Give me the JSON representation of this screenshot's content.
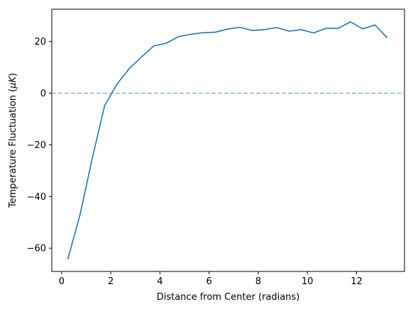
{
  "chart_data": {
    "type": "line",
    "title": "",
    "xlabel": "Distance from Center (radians)",
    "ylabel_prefix": "Temperature Fluctuation (",
    "ylabel_unit": "μK",
    "ylabel_suffix": ")",
    "xlim": [
      -0.4,
      13.95
    ],
    "ylim": [
      -69,
      32.5
    ],
    "xticks": [
      0,
      2,
      4,
      6,
      8,
      10,
      12
    ],
    "yticks": [
      -60,
      -40,
      -20,
      0,
      20
    ],
    "grid": false,
    "legend": "none",
    "reference_line": {
      "y": 0,
      "style": "dashed",
      "color": "#8bb4d0"
    },
    "series": [
      {
        "color": "#1f77b4",
        "x": [
          0.25,
          0.75,
          1.25,
          1.75,
          2.25,
          2.75,
          3.25,
          3.75,
          4.25,
          4.75,
          5.25,
          5.75,
          6.25,
          6.75,
          7.25,
          7.75,
          8.25,
          8.75,
          9.25,
          9.75,
          10.25,
          10.75,
          11.25,
          11.75,
          12.25,
          12.75,
          13.25
        ],
        "values": [
          -64.3,
          -47.0,
          -25.0,
          -4.8,
          3.5,
          9.5,
          14.0,
          18.3,
          19.3,
          21.9,
          22.8,
          23.4,
          23.6,
          24.8,
          25.5,
          24.3,
          24.6,
          25.4,
          24.0,
          24.6,
          23.3,
          25.1,
          25.1,
          27.6,
          24.9,
          26.4,
          21.4
        ]
      }
    ]
  }
}
